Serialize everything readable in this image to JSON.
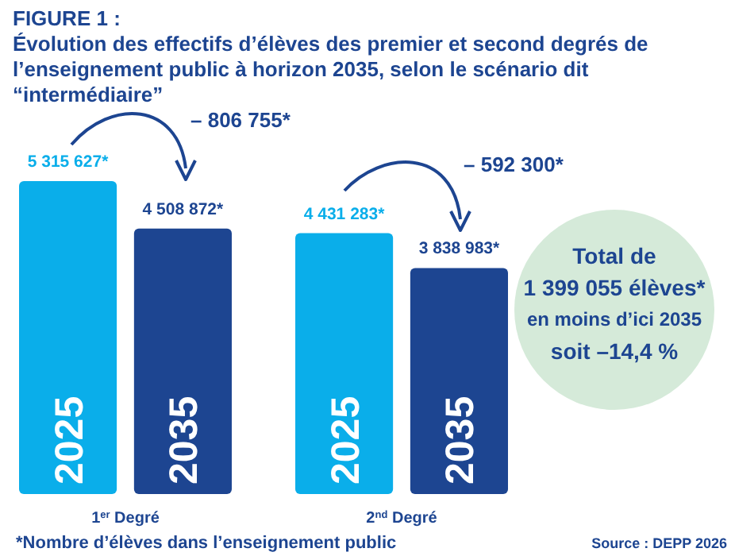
{
  "chart_data": {
    "type": "bar",
    "title": "FIGURE 1 :",
    "subtitle": "Évolution des effectifs d’élèves des premier et second degrés de l’enseignement public à horizon 2035, selon le scénario dit “intermédiaire”",
    "categories": [
      "1$^{er}$ Degré",
      "2$^{nd}$ Degré"
    ],
    "series": [
      {
        "name": "2025",
        "color": "#0aaeea",
        "values": [
          5315627,
          4431283
        ],
        "value_labels": [
          "5 315 627*",
          "4 431 283*"
        ]
      },
      {
        "name": "2035",
        "color": "#1d4591",
        "values": [
          4508872,
          3838983
        ],
        "value_labels": [
          "4 508 872*",
          "3 838 983*"
        ]
      }
    ],
    "annotations": [
      "– 806 755*",
      "– 592 300*",
      "Total de",
      "1 399 055 élèves*",
      "en moins d’ici 2035",
      "soit  –14,4 %",
      "*Nombre d’élèves dans l’enseignement public",
      "Source : DEPP 2026"
    ]
  }
}
